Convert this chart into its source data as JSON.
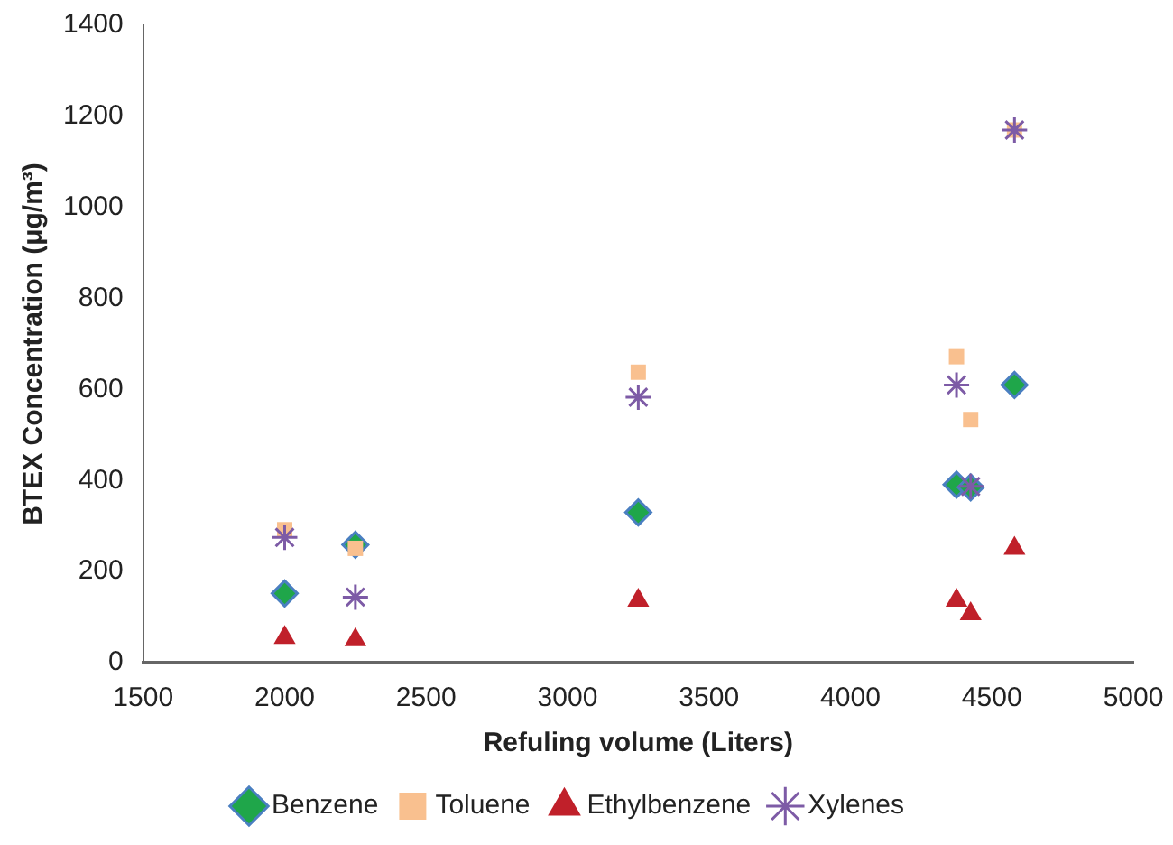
{
  "chart_data": {
    "type": "scatter",
    "xlabel": "Refuling volume (Liters)",
    "ylabel": "BTEX Concentration (μg/m³)",
    "xlim": [
      1500,
      5000
    ],
    "xticks": [
      1500,
      2000,
      2500,
      3000,
      3500,
      4000,
      4500,
      5000
    ],
    "ylim": [
      0,
      1400
    ],
    "yticks": [
      0,
      200,
      400,
      600,
      800,
      1000,
      1200,
      1400
    ],
    "grid": false,
    "legend": "bottom",
    "x": [
      2000,
      2250,
      3250,
      4375,
      4425,
      4580
    ],
    "series": [
      {
        "name": "Benzene",
        "color": "#1fa64a",
        "marker": "diamond",
        "values": [
          152,
          259,
          330,
          391,
          385,
          610
        ]
      },
      {
        "name": "Toluene",
        "color": "#f9c08f",
        "marker": "square",
        "values": [
          292,
          251,
          638,
          672,
          534,
          1170
        ]
      },
      {
        "name": "Ethylbenzene",
        "color": "#c0202a",
        "marker": "triangle",
        "values": [
          55,
          50,
          137,
          137,
          107,
          251
        ]
      },
      {
        "name": "Xylenes",
        "color": "#7d5ba6",
        "marker": "cross",
        "values": [
          275,
          144,
          583,
          610,
          387,
          1170
        ]
      }
    ]
  }
}
